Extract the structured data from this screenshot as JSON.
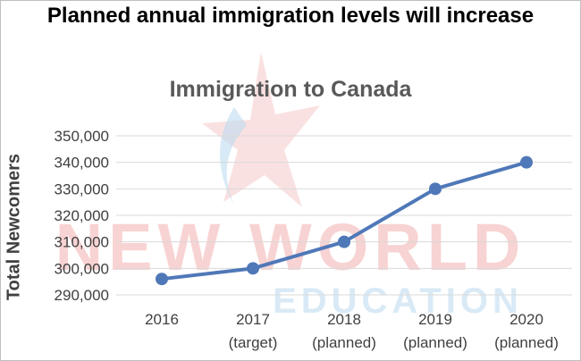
{
  "headline": "Planned annual immigration levels will increase",
  "watermark": {
    "line1": "NEW WORLD",
    "line2": "EDUCATION",
    "color_primary": "#e23b3b",
    "color_secondary": "#7ab6e0"
  },
  "chart_data": {
    "type": "line",
    "title": "Immigration to Canada",
    "xlabel": "",
    "ylabel": "Total Newcomers",
    "categories": [
      "2016",
      "2017 (target)",
      "2018 (planned)",
      "2019 (planned)",
      "2020 (planned)"
    ],
    "x_labels": [
      [
        "2016"
      ],
      [
        "2017",
        "(target)"
      ],
      [
        "2018",
        "(planned)"
      ],
      [
        "2019",
        "(planned)"
      ],
      [
        "2020",
        "(planned)"
      ]
    ],
    "series": [
      {
        "values": [
          296000,
          300000,
          310000,
          330000,
          340000
        ],
        "color": "#4f78b8"
      }
    ],
    "ylim": [
      290000,
      350000
    ],
    "yticks": [
      290000,
      300000,
      310000,
      320000,
      330000,
      340000,
      350000
    ],
    "ytick_labels": [
      "290,000",
      "300,000",
      "310,000",
      "320,000",
      "330,000",
      "340,000",
      "350,000"
    ],
    "grid": true,
    "grid_color": "#d9d9d9",
    "legend": "none"
  }
}
